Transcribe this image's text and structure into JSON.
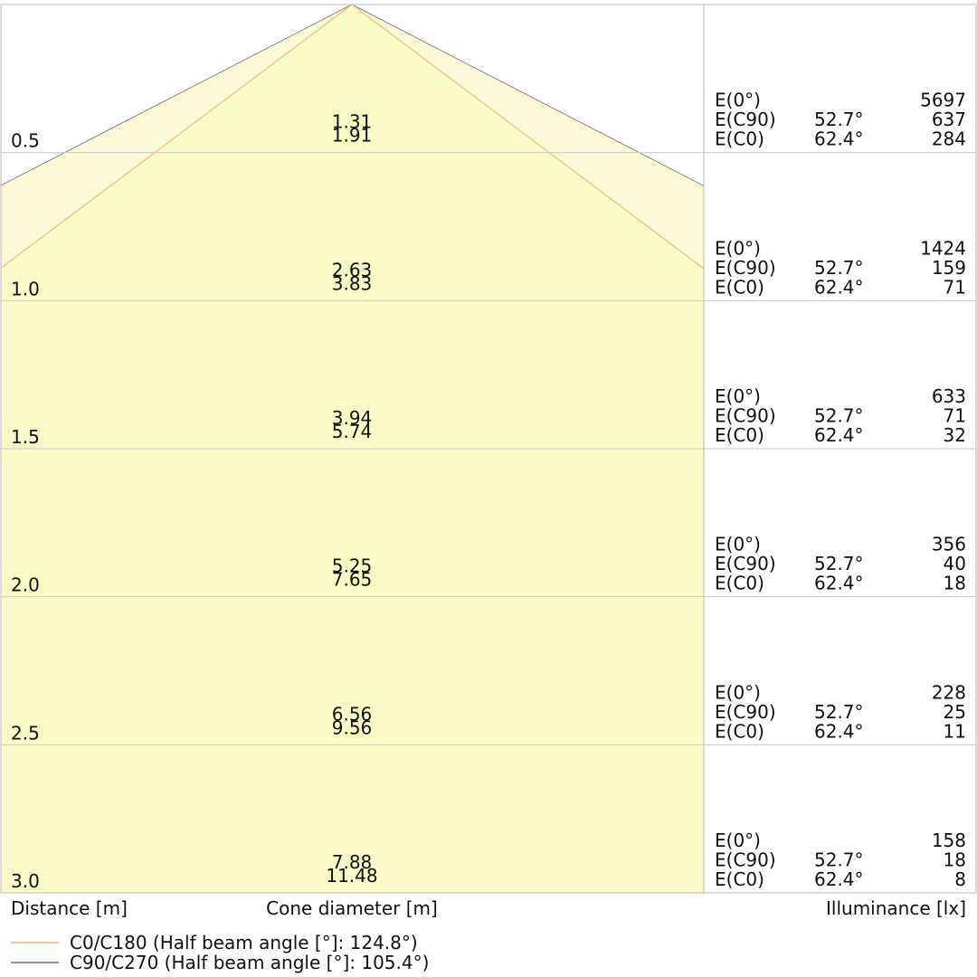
{
  "labels": {
    "distance": "Distance [m]",
    "cone": "Cone diameter [m]",
    "illuminance": "Illuminance [lx]"
  },
  "legend": [
    {
      "name": "C0/C180 (Half beam angle [°]: 124.8°)",
      "color": "#f2b36a"
    },
    {
      "name": "C90/C270 (Half beam angle [°]: 105.4°)",
      "color": "#6e6e6e"
    }
  ],
  "rows": [
    {
      "distance": "0.5",
      "diameters": [
        1.31,
        1.91
      ],
      "illuminance": [
        {
          "label": "E(0°)",
          "value": 5697
        },
        {
          "label": "E(C90)",
          "angle": "52.7°",
          "value": 637
        },
        {
          "label": "E(C0)",
          "angle": "62.4°",
          "value": 284
        }
      ]
    },
    {
      "distance": "1.0",
      "diameters": [
        2.63,
        3.83
      ],
      "illuminance": [
        {
          "label": "E(0°)",
          "value": 1424
        },
        {
          "label": "E(C90)",
          "angle": "52.7°",
          "value": 159
        },
        {
          "label": "E(C0)",
          "angle": "62.4°",
          "value": 71
        }
      ]
    },
    {
      "distance": "1.5",
      "diameters": [
        3.94,
        5.74
      ],
      "illuminance": [
        {
          "label": "E(0°)",
          "value": 633
        },
        {
          "label": "E(C90)",
          "angle": "52.7°",
          "value": 71
        },
        {
          "label": "E(C0)",
          "angle": "62.4°",
          "value": 32
        }
      ]
    },
    {
      "distance": "2.0",
      "diameters": [
        5.25,
        7.65
      ],
      "illuminance": [
        {
          "label": "E(0°)",
          "value": 356
        },
        {
          "label": "E(C90)",
          "angle": "52.7°",
          "value": 40
        },
        {
          "label": "E(C0)",
          "angle": "62.4°",
          "value": 18
        }
      ]
    },
    {
      "distance": "2.5",
      "diameters": [
        6.56,
        9.56
      ],
      "illuminance": [
        {
          "label": "E(0°)",
          "value": 228
        },
        {
          "label": "E(C90)",
          "angle": "52.7°",
          "value": 25
        },
        {
          "label": "E(C0)",
          "angle": "62.4°",
          "value": 11
        }
      ]
    },
    {
      "distance": "3.0",
      "diameters": [
        7.88,
        11.48
      ],
      "illuminance": [
        {
          "label": "E(0°)",
          "value": 158
        },
        {
          "label": "E(C90)",
          "angle": "52.7°",
          "value": 18
        },
        {
          "label": "E(C0)",
          "angle": "62.4°",
          "value": 8
        }
      ]
    }
  ]
}
